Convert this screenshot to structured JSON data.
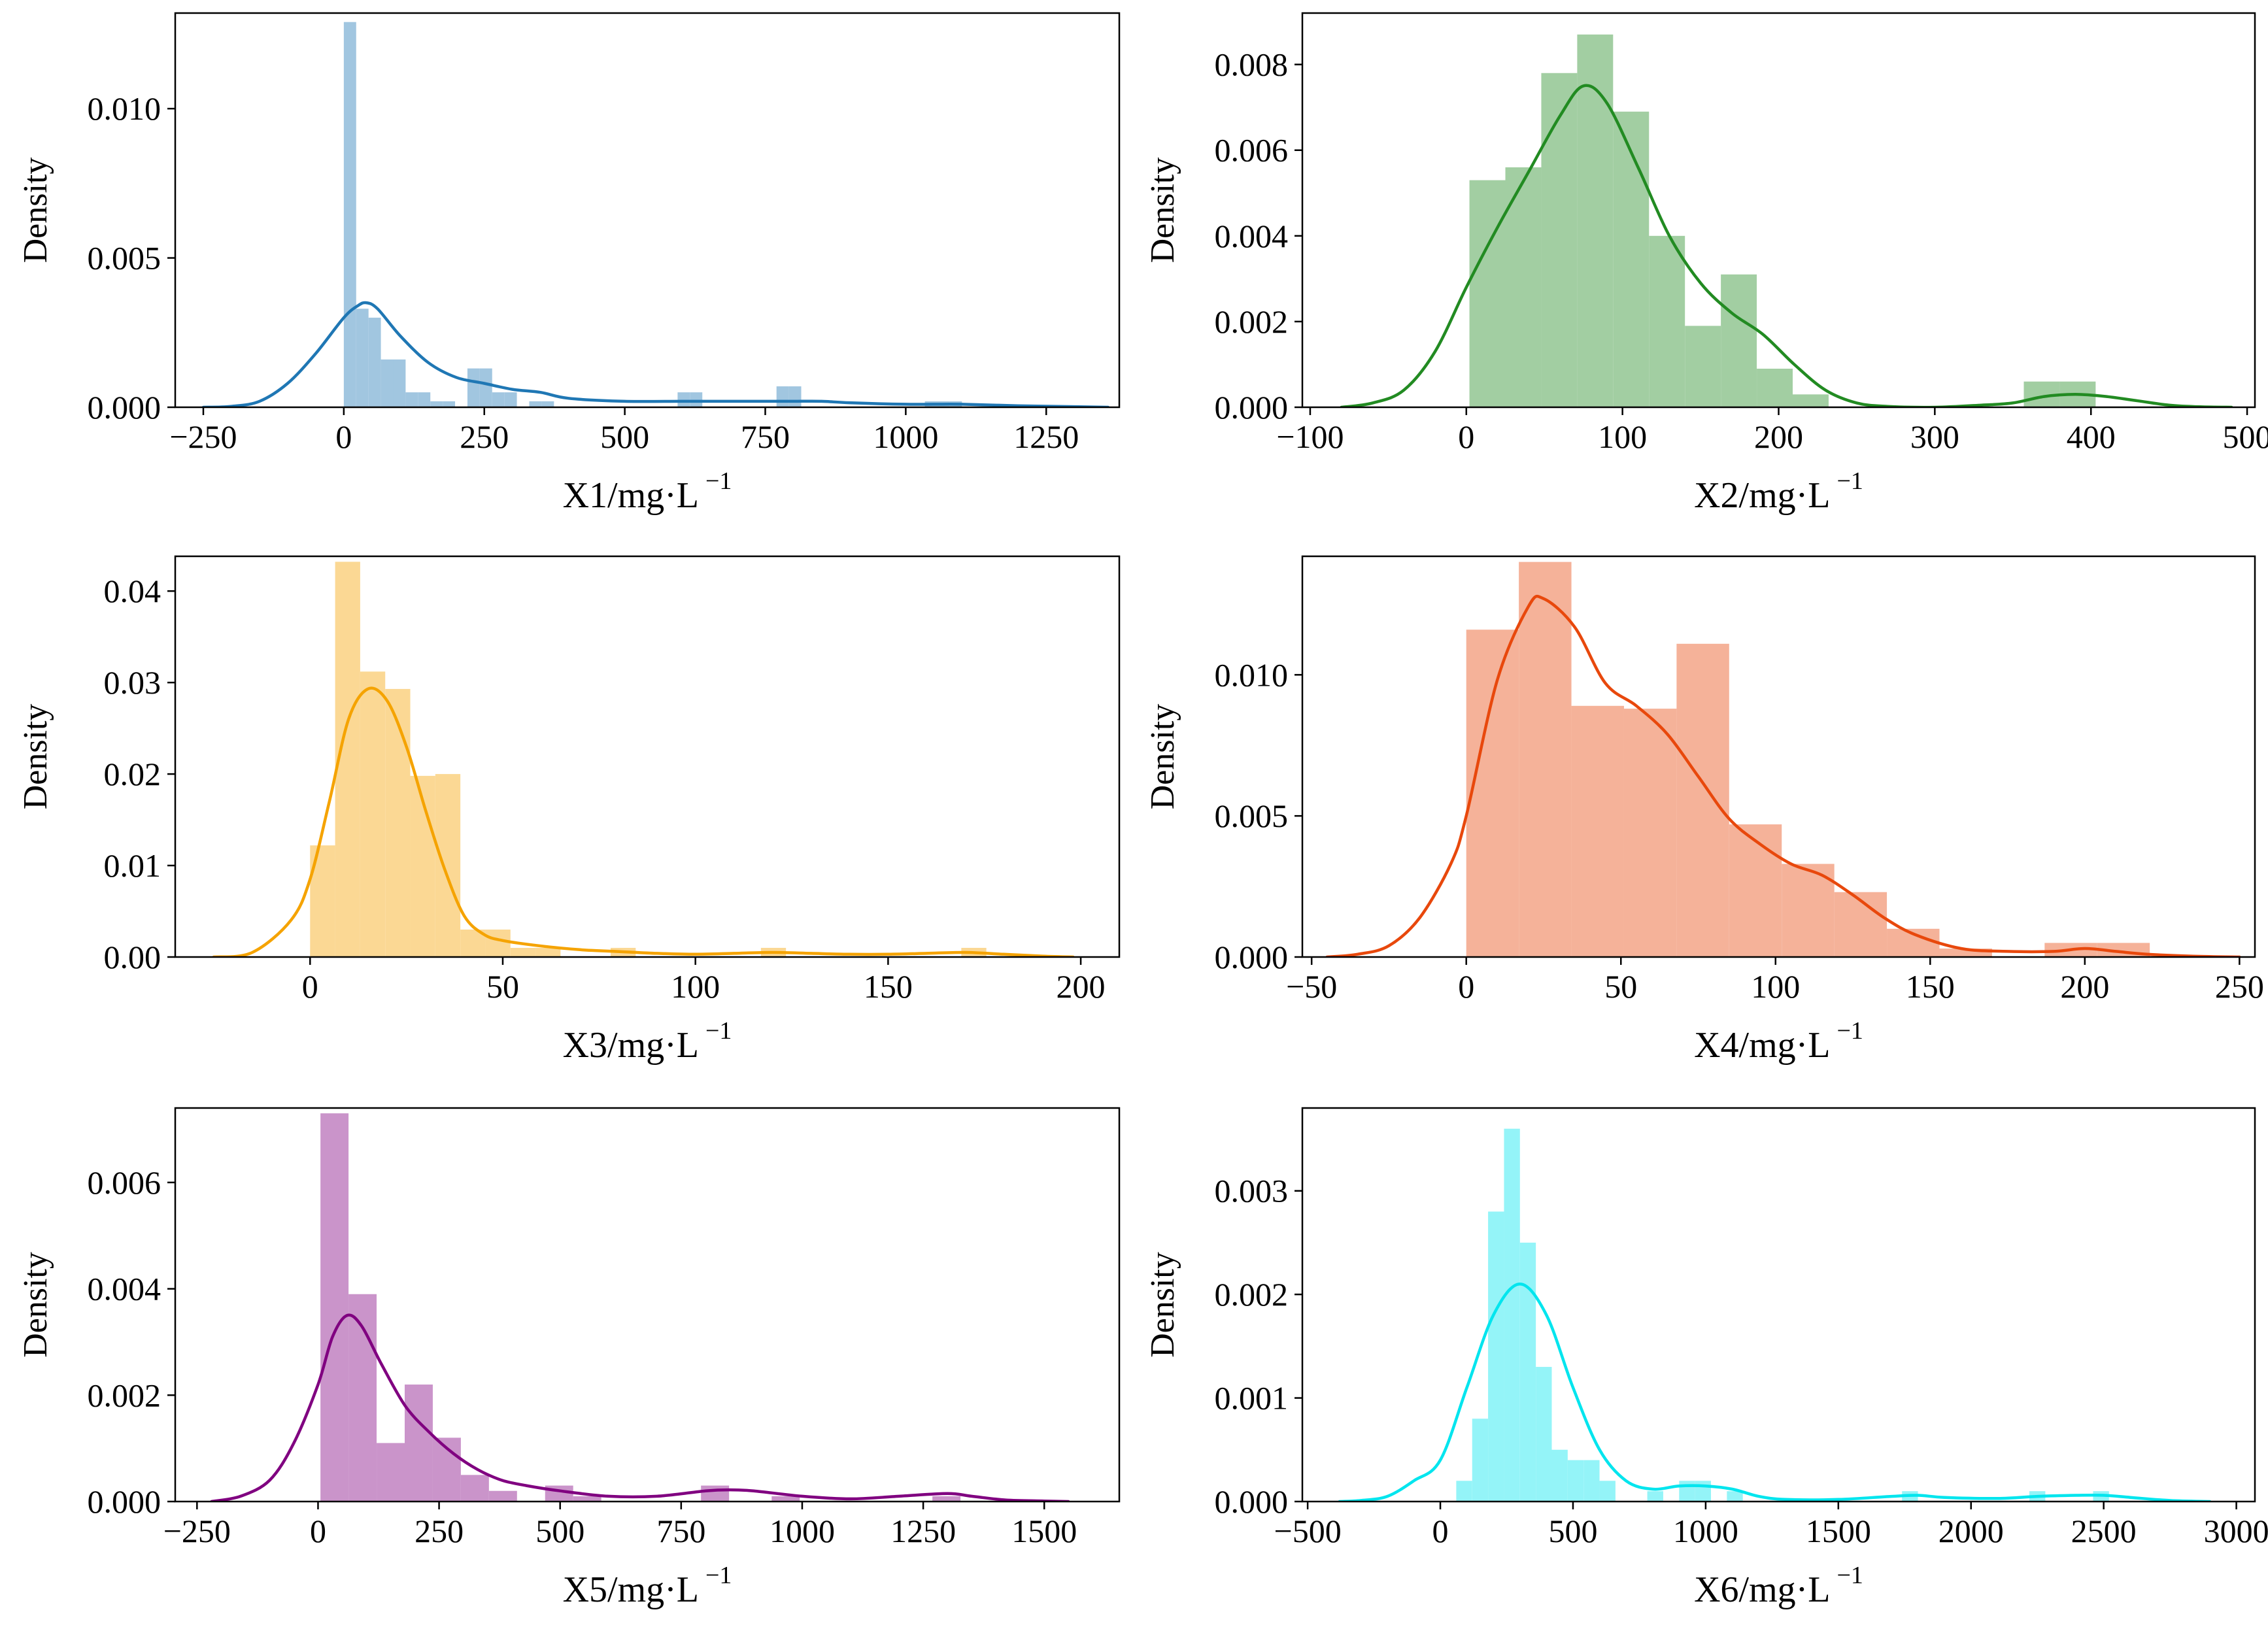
{
  "chart_data": [
    {
      "type": "histogram-kde",
      "title": "",
      "xlabel": "X1/mg·L",
      "xlabel_sup": "−1",
      "ylabel": "Density",
      "color": "#1f77b4",
      "xlim": [
        -300,
        1380
      ],
      "ylim": [
        0,
        0.0132
      ],
      "xticks": [
        -250,
        0,
        250,
        500,
        750,
        1000,
        1250
      ],
      "xtick_labels": [
        "−250",
        "0",
        "250",
        "500",
        "750",
        "1000",
        "1250"
      ],
      "yticks": [
        0,
        0.005,
        0.01
      ],
      "ytick_labels": [
        "0.000",
        "0.005",
        "0.010"
      ],
      "bins": [
        {
          "x0": 0,
          "x1": 22,
          "density": 0.0129
        },
        {
          "x0": 22,
          "x1": 44,
          "density": 0.0033
        },
        {
          "x0": 44,
          "x1": 66,
          "density": 0.003
        },
        {
          "x0": 66,
          "x1": 88,
          "density": 0.0016
        },
        {
          "x0": 88,
          "x1": 110,
          "density": 0.0016
        },
        {
          "x0": 110,
          "x1": 132,
          "density": 0.0005
        },
        {
          "x0": 132,
          "x1": 154,
          "density": 0.0005
        },
        {
          "x0": 154,
          "x1": 176,
          "density": 0.0002
        },
        {
          "x0": 176,
          "x1": 198,
          "density": 0.0002
        },
        {
          "x0": 198,
          "x1": 220,
          "density": 0.0
        },
        {
          "x0": 220,
          "x1": 242,
          "density": 0.0013
        },
        {
          "x0": 242,
          "x1": 264,
          "density": 0.0013
        },
        {
          "x0": 264,
          "x1": 286,
          "density": 0.0005
        },
        {
          "x0": 286,
          "x1": 308,
          "density": 0.0005
        },
        {
          "x0": 330,
          "x1": 352,
          "density": 0.0002
        },
        {
          "x0": 352,
          "x1": 374,
          "density": 0.0002
        },
        {
          "x0": 594,
          "x1": 616,
          "density": 0.0005
        },
        {
          "x0": 616,
          "x1": 638,
          "density": 0.0005
        },
        {
          "x0": 770,
          "x1": 792,
          "density": 0.0007
        },
        {
          "x0": 792,
          "x1": 814,
          "density": 0.0007
        },
        {
          "x0": 1034,
          "x1": 1056,
          "density": 0.0002
        },
        {
          "x0": 1056,
          "x1": 1078,
          "density": 0.0002
        },
        {
          "x0": 1078,
          "x1": 1100,
          "density": 0.0002
        }
      ],
      "kde": {
        "x": [
          -250,
          -200,
          -150,
          -100,
          -50,
          0,
          25,
          40,
          60,
          100,
          150,
          200,
          250,
          300,
          350,
          400,
          500,
          600,
          650,
          700,
          750,
          800,
          850,
          900,
          1000,
          1050,
          1100,
          1200,
          1300,
          1360
        ],
        "y": [
          0.0,
          3e-05,
          0.0002,
          0.0008,
          0.0018,
          0.003,
          0.0034,
          0.0035,
          0.0033,
          0.0024,
          0.0015,
          0.001,
          0.0008,
          0.0006,
          0.0005,
          0.0003,
          0.0002,
          0.0002,
          0.0002,
          0.0002,
          0.0002,
          0.0002,
          0.0002,
          0.00015,
          0.0001,
          0.0001,
          0.0001,
          5e-05,
          2e-05,
          0.0
        ]
      }
    },
    {
      "type": "histogram-kde",
      "title": "",
      "xlabel": "X2/mg·L",
      "xlabel_sup": "−1",
      "ylabel": "Density",
      "color": "#228b22",
      "xlim": [
        -105,
        505
      ],
      "ylim": [
        0,
        0.0092
      ],
      "xticks": [
        -100,
        0,
        100,
        200,
        300,
        400,
        500
      ],
      "xtick_labels": [
        "−100",
        "0",
        "100",
        "200",
        "300",
        "400",
        "500"
      ],
      "yticks": [
        0,
        0.002,
        0.004,
        0.006,
        0.008
      ],
      "ytick_labels": [
        "0.000",
        "0.002",
        "0.004",
        "0.006",
        "0.008"
      ],
      "bins": [
        {
          "x0": 2,
          "x1": 25,
          "density": 0.0053
        },
        {
          "x0": 25,
          "x1": 48,
          "density": 0.0056
        },
        {
          "x0": 48,
          "x1": 71,
          "density": 0.0078
        },
        {
          "x0": 71,
          "x1": 94,
          "density": 0.0087
        },
        {
          "x0": 94,
          "x1": 117,
          "density": 0.0069
        },
        {
          "x0": 117,
          "x1": 140,
          "density": 0.004
        },
        {
          "x0": 140,
          "x1": 163,
          "density": 0.0019
        },
        {
          "x0": 163,
          "x1": 186,
          "density": 0.0031
        },
        {
          "x0": 186,
          "x1": 209,
          "density": 0.0009
        },
        {
          "x0": 209,
          "x1": 232,
          "density": 0.0003
        },
        {
          "x0": 357,
          "x1": 380,
          "density": 0.0006
        },
        {
          "x0": 380,
          "x1": 403,
          "density": 0.0006
        }
      ],
      "kde": {
        "x": [
          -80,
          -60,
          -40,
          -20,
          0,
          20,
          40,
          60,
          75,
          90,
          110,
          130,
          150,
          170,
          190,
          210,
          230,
          250,
          270,
          300,
          330,
          350,
          370,
          390,
          410,
          430,
          450,
          470,
          490
        ],
        "y": [
          0.0,
          0.0001,
          0.0004,
          0.0013,
          0.0028,
          0.0042,
          0.0055,
          0.0068,
          0.0075,
          0.0071,
          0.0056,
          0.004,
          0.0029,
          0.0022,
          0.0017,
          0.001,
          0.0004,
          0.0001,
          2e-05,
          0.0,
          5e-05,
          0.0001,
          0.00025,
          0.0003,
          0.00025,
          0.00015,
          5e-05,
          1e-05,
          0.0
        ]
      }
    },
    {
      "type": "histogram-kde",
      "title": "",
      "xlabel": "X3/mg·L",
      "xlabel_sup": "−1",
      "ylabel": "Density",
      "color": "#f5a300",
      "xlim": [
        -35,
        210
      ],
      "ylim": [
        0,
        0.0438
      ],
      "xticks": [
        0,
        50,
        100,
        150,
        200
      ],
      "xtick_labels": [
        "0",
        "50",
        "100",
        "150",
        "200"
      ],
      "yticks": [
        0,
        0.01,
        0.02,
        0.03,
        0.04
      ],
      "ytick_labels": [
        "0.00",
        "0.01",
        "0.02",
        "0.03",
        "0.04"
      ],
      "bins": [
        {
          "x0": 0,
          "x1": 6.5,
          "density": 0.0122
        },
        {
          "x0": 6.5,
          "x1": 13,
          "density": 0.0432
        },
        {
          "x0": 13,
          "x1": 19.5,
          "density": 0.0312
        },
        {
          "x0": 19.5,
          "x1": 26,
          "density": 0.0293
        },
        {
          "x0": 26,
          "x1": 32.5,
          "density": 0.0198
        },
        {
          "x0": 32.5,
          "x1": 39,
          "density": 0.02
        },
        {
          "x0": 39,
          "x1": 45.5,
          "density": 0.003
        },
        {
          "x0": 45.5,
          "x1": 52,
          "density": 0.003
        },
        {
          "x0": 52,
          "x1": 58.5,
          "density": 0.001
        },
        {
          "x0": 58.5,
          "x1": 65,
          "density": 0.001
        },
        {
          "x0": 78,
          "x1": 84.5,
          "density": 0.001
        },
        {
          "x0": 117,
          "x1": 123.5,
          "density": 0.001
        },
        {
          "x0": 169,
          "x1": 175.5,
          "density": 0.001
        }
      ],
      "kde": {
        "x": [
          -25,
          -15,
          -5,
          0,
          5,
          10,
          15,
          20,
          25,
          30,
          35,
          40,
          45,
          50,
          60,
          70,
          80,
          90,
          100,
          110,
          120,
          130,
          140,
          150,
          160,
          170,
          180,
          190,
          198
        ],
        "y": [
          0.0,
          0.0005,
          0.004,
          0.0085,
          0.017,
          0.026,
          0.0293,
          0.028,
          0.023,
          0.016,
          0.0095,
          0.0045,
          0.0025,
          0.0018,
          0.0012,
          0.0008,
          0.0006,
          0.0004,
          0.0003,
          0.0004,
          0.0005,
          0.0004,
          0.0003,
          0.0003,
          0.0004,
          0.0005,
          0.0003,
          0.0001,
          0.0
        ]
      }
    },
    {
      "type": "histogram-kde",
      "title": "",
      "xlabel": "X4/mg·L",
      "xlabel_sup": "−1",
      "ylabel": "Density",
      "color": "#e8480c",
      "xlim": [
        -53,
        255
      ],
      "ylim": [
        0,
        0.0142
      ],
      "xticks": [
        -50,
        0,
        50,
        100,
        150,
        200,
        250
      ],
      "xtick_labels": [
        "−50",
        "0",
        "50",
        "100",
        "150",
        "200",
        "250"
      ],
      "yticks": [
        0,
        0.005,
        0.01
      ],
      "ytick_labels": [
        "0.000",
        "0.005",
        "0.010"
      ],
      "bins": [
        {
          "x0": 0,
          "x1": 17,
          "density": 0.0116
        },
        {
          "x0": 17,
          "x1": 34,
          "density": 0.014
        },
        {
          "x0": 34,
          "x1": 51,
          "density": 0.0089
        },
        {
          "x0": 51,
          "x1": 68,
          "density": 0.0088
        },
        {
          "x0": 68,
          "x1": 85,
          "density": 0.0111
        },
        {
          "x0": 85,
          "x1": 102,
          "density": 0.0047
        },
        {
          "x0": 102,
          "x1": 119,
          "density": 0.0033
        },
        {
          "x0": 119,
          "x1": 136,
          "density": 0.0023
        },
        {
          "x0": 136,
          "x1": 153,
          "density": 0.001
        },
        {
          "x0": 153,
          "x1": 170,
          "density": 0.0003
        },
        {
          "x0": 187,
          "x1": 204,
          "density": 0.0005
        },
        {
          "x0": 204,
          "x1": 221,
          "density": 0.0005
        }
      ],
      "kde": {
        "x": [
          -45,
          -35,
          -25,
          -15,
          -5,
          0,
          10,
          20,
          25,
          35,
          45,
          55,
          65,
          75,
          85,
          95,
          105,
          115,
          125,
          135,
          145,
          160,
          175,
          190,
          200,
          210,
          220,
          235,
          250
        ],
        "y": [
          0.0,
          0.0001,
          0.0004,
          0.0014,
          0.0033,
          0.005,
          0.0098,
          0.0124,
          0.0127,
          0.0117,
          0.0097,
          0.0089,
          0.0079,
          0.0064,
          0.0049,
          0.004,
          0.0033,
          0.0029,
          0.0022,
          0.0014,
          0.0008,
          0.0003,
          0.0002,
          0.0002,
          0.0003,
          0.0002,
          0.0001,
          3e-05,
          0.0
        ]
      }
    },
    {
      "type": "histogram-kde",
      "title": "",
      "xlabel": "X5/mg·L",
      "xlabel_sup": "−1",
      "ylabel": "Density",
      "color": "#800080",
      "xlim": [
        -295,
        1655
      ],
      "ylim": [
        0,
        0.0074
      ],
      "xticks": [
        -250,
        0,
        250,
        500,
        750,
        1000,
        1250,
        1500
      ],
      "xtick_labels": [
        "−250",
        "0",
        "250",
        "500",
        "750",
        "1000",
        "1250",
        "1500"
      ],
      "yticks": [
        0,
        0.002,
        0.004,
        0.006
      ],
      "ytick_labels": [
        "0.000",
        "0.002",
        "0.004",
        "0.006"
      ],
      "bins": [
        {
          "x0": 5,
          "x1": 63,
          "density": 0.0073
        },
        {
          "x0": 63,
          "x1": 121,
          "density": 0.0039
        },
        {
          "x0": 121,
          "x1": 179,
          "density": 0.0011
        },
        {
          "x0": 179,
          "x1": 237,
          "density": 0.0022
        },
        {
          "x0": 237,
          "x1": 295,
          "density": 0.0012
        },
        {
          "x0": 295,
          "x1": 353,
          "density": 0.0005
        },
        {
          "x0": 353,
          "x1": 411,
          "density": 0.0002
        },
        {
          "x0": 469,
          "x1": 527,
          "density": 0.0003
        },
        {
          "x0": 527,
          "x1": 585,
          "density": 0.0001
        },
        {
          "x0": 791,
          "x1": 849,
          "density": 0.0003
        },
        {
          "x0": 937,
          "x1": 995,
          "density": 0.0001
        },
        {
          "x0": 1269,
          "x1": 1327,
          "density": 0.0001
        }
      ],
      "kde": {
        "x": [
          -220,
          -160,
          -100,
          -50,
          0,
          30,
          60,
          90,
          130,
          180,
          230,
          280,
          330,
          380,
          430,
          500,
          600,
          700,
          800,
          850,
          900,
          1000,
          1100,
          1200,
          1300,
          1350,
          1420,
          1500,
          1550
        ],
        "y": [
          0.0,
          0.0001,
          0.0004,
          0.0011,
          0.0022,
          0.0031,
          0.0035,
          0.0033,
          0.0026,
          0.0018,
          0.0013,
          0.0009,
          0.0006,
          0.0004,
          0.0003,
          0.0002,
          0.0001,
          0.0001,
          0.0002,
          0.00022,
          0.0002,
          0.0001,
          5e-05,
          0.0001,
          0.00015,
          0.0001,
          3e-05,
          1e-05,
          0.0
        ]
      }
    },
    {
      "type": "histogram-kde",
      "title": "",
      "xlabel": "X6/mg·L",
      "xlabel_sup": "−1",
      "ylabel": "Density",
      "color": "#00e5ee",
      "xlim": [
        -520,
        3070
      ],
      "ylim": [
        0,
        0.0038
      ],
      "xticks": [
        -500,
        0,
        500,
        1000,
        1500,
        2000,
        2500,
        3000
      ],
      "xtick_labels": [
        "−500",
        "0",
        "500",
        "1000",
        "1500",
        "2000",
        "2500",
        "3000"
      ],
      "yticks": [
        0,
        0.001,
        0.002,
        0.003
      ],
      "ytick_labels": [
        "0.000",
        "0.001",
        "0.002",
        "0.003"
      ],
      "bins": [
        {
          "x0": 60,
          "x1": 120,
          "density": 0.0002
        },
        {
          "x0": 120,
          "x1": 180,
          "density": 0.0008
        },
        {
          "x0": 180,
          "x1": 240,
          "density": 0.0028
        },
        {
          "x0": 240,
          "x1": 300,
          "density": 0.0036
        },
        {
          "x0": 300,
          "x1": 360,
          "density": 0.0025
        },
        {
          "x0": 360,
          "x1": 420,
          "density": 0.0013
        },
        {
          "x0": 420,
          "x1": 480,
          "density": 0.0005
        },
        {
          "x0": 480,
          "x1": 540,
          "density": 0.0004
        },
        {
          "x0": 540,
          "x1": 600,
          "density": 0.0004
        },
        {
          "x0": 600,
          "x1": 660,
          "density": 0.0002
        },
        {
          "x0": 780,
          "x1": 840,
          "density": 0.0001
        },
        {
          "x0": 900,
          "x1": 960,
          "density": 0.0002
        },
        {
          "x0": 960,
          "x1": 1020,
          "density": 0.0002
        },
        {
          "x0": 1080,
          "x1": 1140,
          "density": 0.0001
        },
        {
          "x0": 1740,
          "x1": 1800,
          "density": 0.0001
        },
        {
          "x0": 2220,
          "x1": 2280,
          "density": 0.0001
        },
        {
          "x0": 2460,
          "x1": 2520,
          "density": 0.0001
        }
      ],
      "kde": {
        "x": [
          -380,
          -300,
          -200,
          -100,
          0,
          100,
          200,
          300,
          400,
          500,
          600,
          700,
          800,
          900,
          1000,
          1100,
          1200,
          1300,
          1500,
          1700,
          1800,
          1900,
          2100,
          2250,
          2400,
          2500,
          2600,
          2750,
          2900
        ],
        "y": [
          0.0,
          1e-05,
          5e-05,
          0.0002,
          0.0004,
          0.0011,
          0.0018,
          0.0021,
          0.0018,
          0.0011,
          0.0005,
          0.0002,
          0.00012,
          0.00015,
          0.00015,
          0.00012,
          5e-05,
          2e-05,
          2e-05,
          5e-05,
          6e-05,
          4e-05,
          3e-05,
          5e-05,
          6e-05,
          6e-05,
          4e-05,
          1e-05,
          0.0
        ]
      }
    }
  ]
}
